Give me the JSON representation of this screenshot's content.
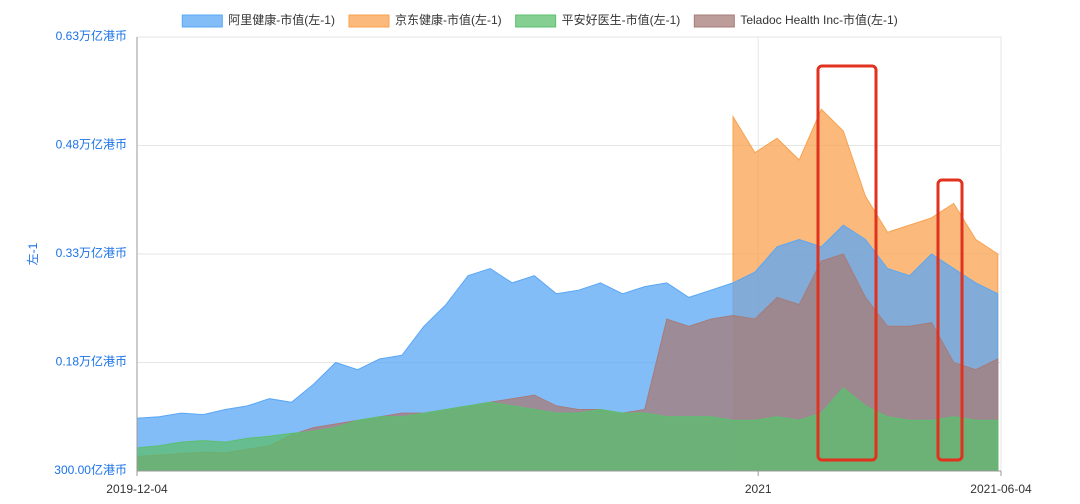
{
  "chart_data": {
    "type": "area",
    "y_axis_label": "左-1",
    "x": [
      "2019-12-04",
      "2019-12-18",
      "2020-01-01",
      "2020-01-15",
      "2020-01-29",
      "2020-02-12",
      "2020-02-26",
      "2020-03-11",
      "2020-03-25",
      "2020-04-08",
      "2020-04-22",
      "2020-05-06",
      "2020-05-20",
      "2020-06-03",
      "2020-06-17",
      "2020-07-01",
      "2020-07-15",
      "2020-07-29",
      "2020-08-12",
      "2020-08-26",
      "2020-09-09",
      "2020-09-23",
      "2020-10-07",
      "2020-10-21",
      "2020-11-04",
      "2020-11-18",
      "2020-12-02",
      "2020-12-16",
      "2020-12-30",
      "2021-01-13",
      "2021-01-27",
      "2021-02-10",
      "2021-02-24",
      "2021-03-10",
      "2021-03-24",
      "2021-04-07",
      "2021-04-21",
      "2021-05-05",
      "2021-05-19",
      "2021-06-02"
    ],
    "xlim": [
      "2019-12-04",
      "2021-06-04"
    ],
    "xticks": [
      "2019-12-04",
      {
        "value": "2021-01-01",
        "label": "2021"
      },
      "2021-06-04"
    ],
    "ylim": [
      300,
      6300
    ],
    "yticks": [
      {
        "value": 300,
        "label": "300.00亿港币"
      },
      {
        "value": 1800,
        "label": "0.18万亿港币"
      },
      {
        "value": 3300,
        "label": "0.33万亿港币"
      },
      {
        "value": 4800,
        "label": "0.48万亿港币"
      },
      {
        "value": 6300,
        "label": "0.63万亿港币"
      }
    ],
    "grid": true,
    "series": [
      {
        "name": "阿里健康-市值(左-1)",
        "color": "#5aa7f5",
        "values": [
          1030,
          1050,
          1100,
          1080,
          1150,
          1200,
          1300,
          1250,
          1500,
          1800,
          1700,
          1850,
          1900,
          2300,
          2600,
          3000,
          3100,
          2900,
          3000,
          2750,
          2800,
          2900,
          2750,
          2850,
          2900,
          2700,
          2800,
          2900,
          3050,
          3400,
          3500,
          3400,
          3700,
          3500,
          3100,
          3000,
          3300,
          3100,
          2900,
          2750
        ]
      },
      {
        "name": "京东健康-市值(左-1)",
        "color": "#f9a24f",
        "values": [
          null,
          null,
          null,
          null,
          null,
          null,
          null,
          null,
          null,
          null,
          null,
          null,
          null,
          null,
          null,
          null,
          null,
          null,
          null,
          null,
          null,
          null,
          null,
          null,
          null,
          null,
          null,
          5200,
          4700,
          4900,
          4600,
          5300,
          5000,
          4100,
          3600,
          3700,
          3800,
          4000,
          3500,
          3300
        ]
      },
      {
        "name": "平安好医生-市值(左-1)",
        "color": "#5cbf6e",
        "values": [
          620,
          650,
          700,
          720,
          700,
          750,
          780,
          820,
          850,
          900,
          1000,
          1050,
          1050,
          1100,
          1150,
          1200,
          1250,
          1200,
          1150,
          1100,
          1100,
          1150,
          1100,
          1100,
          1050,
          1050,
          1050,
          1000,
          1000,
          1050,
          1000,
          1100,
          1450,
          1200,
          1050,
          1000,
          1000,
          1050,
          1000,
          1000
        ]
      },
      {
        "name": "Teladoc Health Inc-市值(左-1)",
        "color": "#a67c78",
        "values": [
          500,
          520,
          540,
          560,
          550,
          600,
          650,
          800,
          900,
          950,
          1000,
          1050,
          1100,
          1100,
          1150,
          1200,
          1250,
          1300,
          1350,
          1200,
          1150,
          1150,
          1100,
          1150,
          2400,
          2300,
          2400,
          2450,
          2400,
          2700,
          2600,
          3200,
          3300,
          2700,
          2300,
          2300,
          2350,
          1800,
          1700,
          1850
        ]
      }
    ]
  }
}
